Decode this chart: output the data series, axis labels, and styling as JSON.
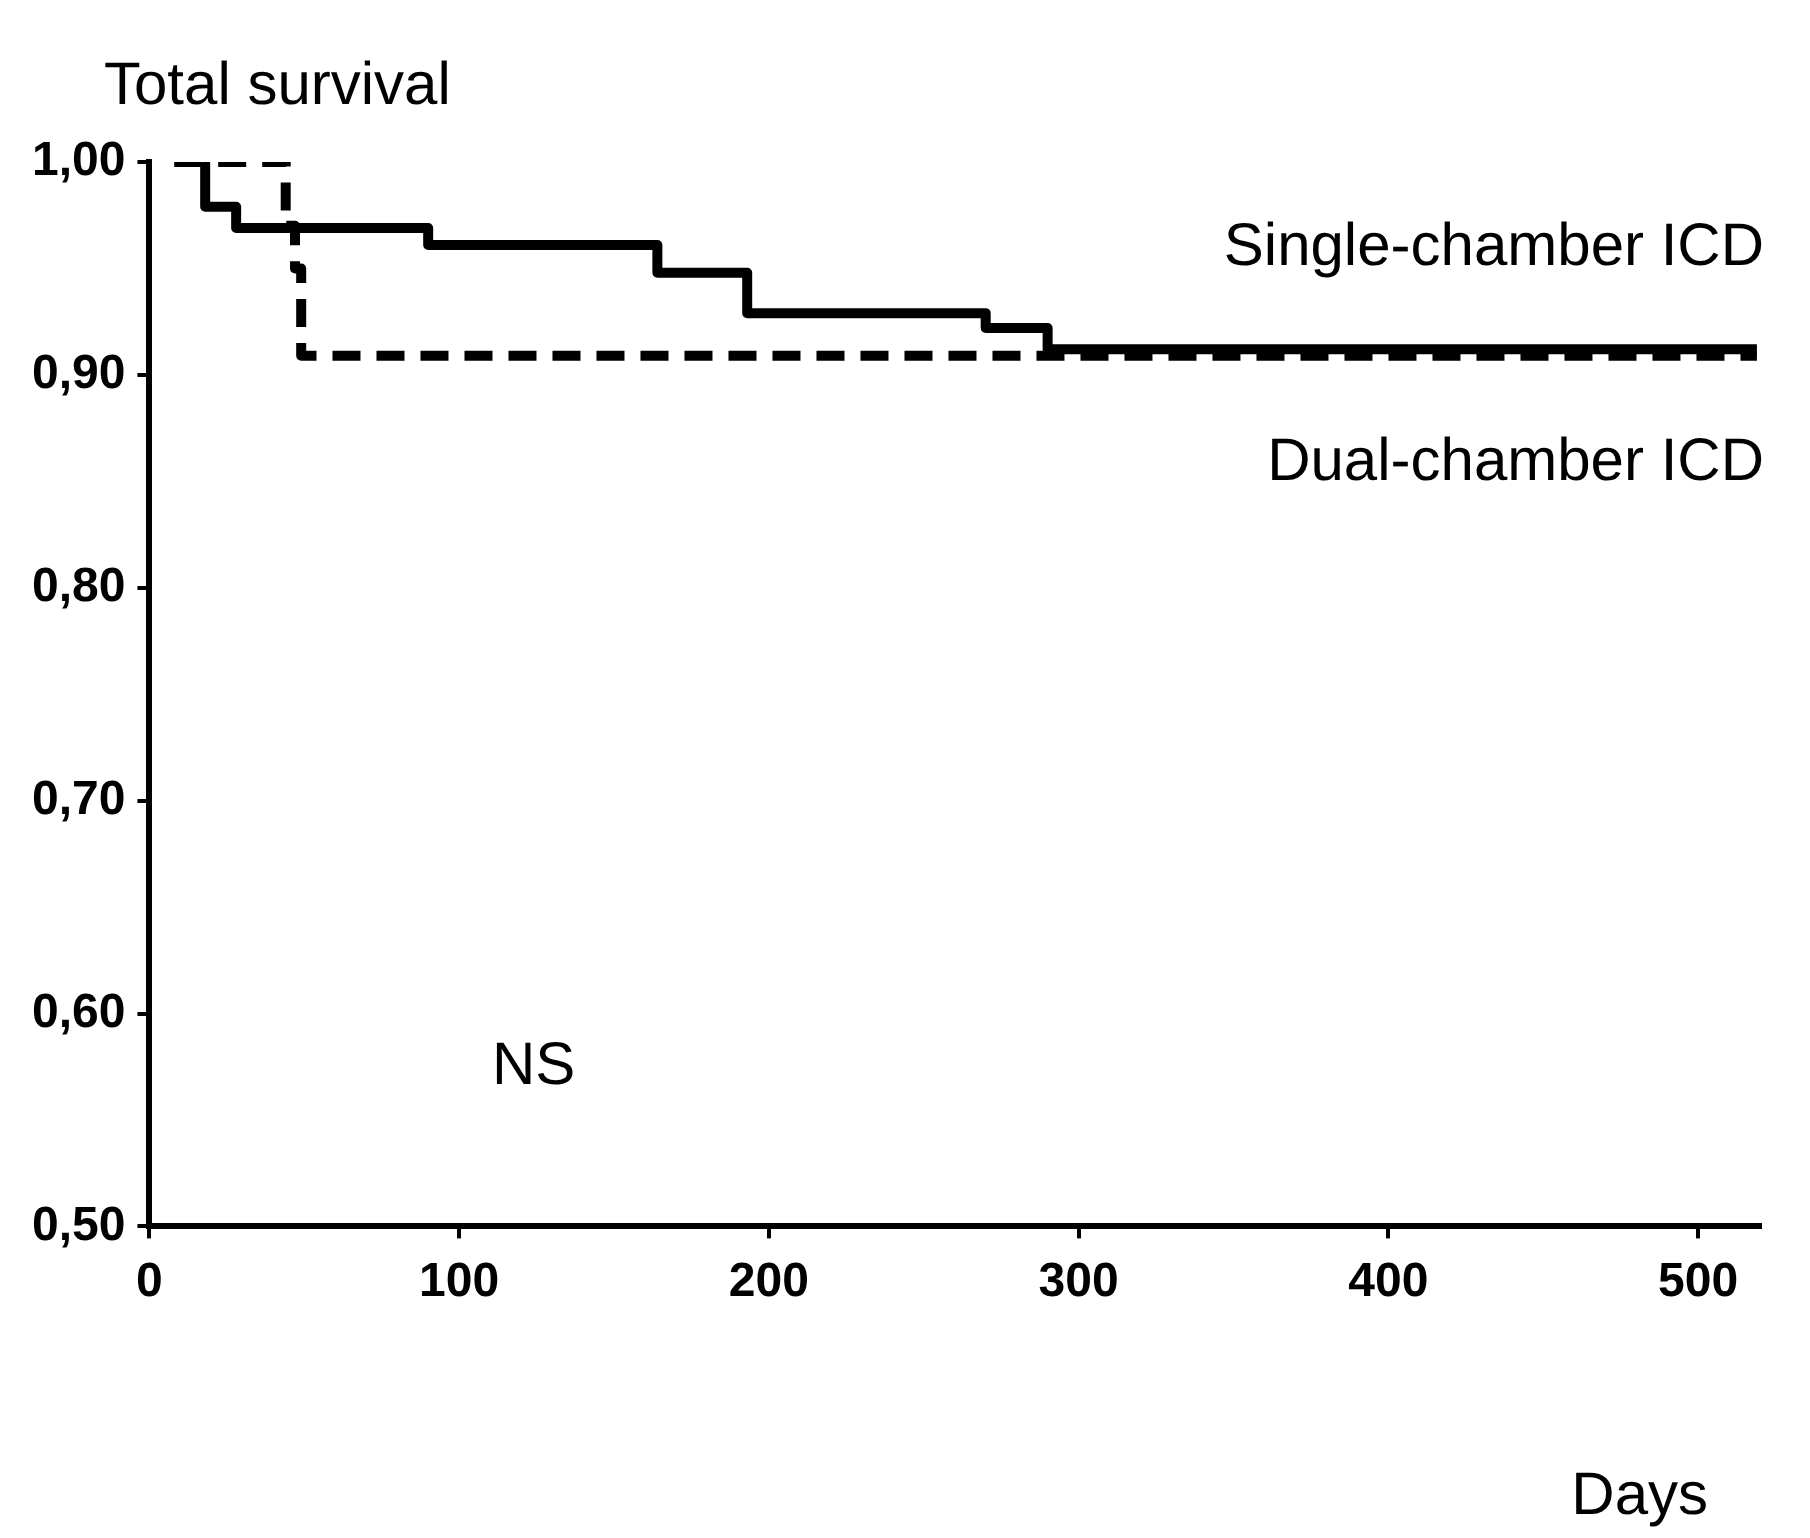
{
  "chart_data": {
    "type": "step",
    "title": "Total survival",
    "xlabel": "Days",
    "legend": false,
    "grid": false,
    "xlim": [
      0,
      520
    ],
    "xticks": [
      0,
      100,
      200,
      300,
      400,
      500
    ],
    "ylim": [
      0.5,
      1.0
    ],
    "yticks": [
      {
        "value": 0.5,
        "label": "0,50"
      },
      {
        "value": 0.6,
        "label": "0,60"
      },
      {
        "value": 0.7,
        "label": "0,70"
      },
      {
        "value": 0.8,
        "label": "0,80"
      },
      {
        "value": 0.9,
        "label": "0,90"
      },
      {
        "value": 1.0,
        "label": "1,00"
      }
    ],
    "series": [
      {
        "name": "Single-chamber ICD",
        "color": "#000000",
        "line_style": "solid",
        "x": [
          9,
          18,
          28,
          90,
          164,
          193,
          270,
          290,
          519
        ],
        "values": [
          1.0,
          0.979,
          0.969,
          0.961,
          0.948,
          0.929,
          0.922,
          0.912,
          0.912
        ]
      },
      {
        "name": "Dual-chamber ICD",
        "color": "#000000",
        "line_style": "dashed",
        "x": [
          8,
          44,
          47,
          49,
          519
        ],
        "values": [
          1.0,
          0.97,
          0.95,
          0.909,
          0.909
        ]
      }
    ],
    "annotations": [
      "NS"
    ]
  }
}
